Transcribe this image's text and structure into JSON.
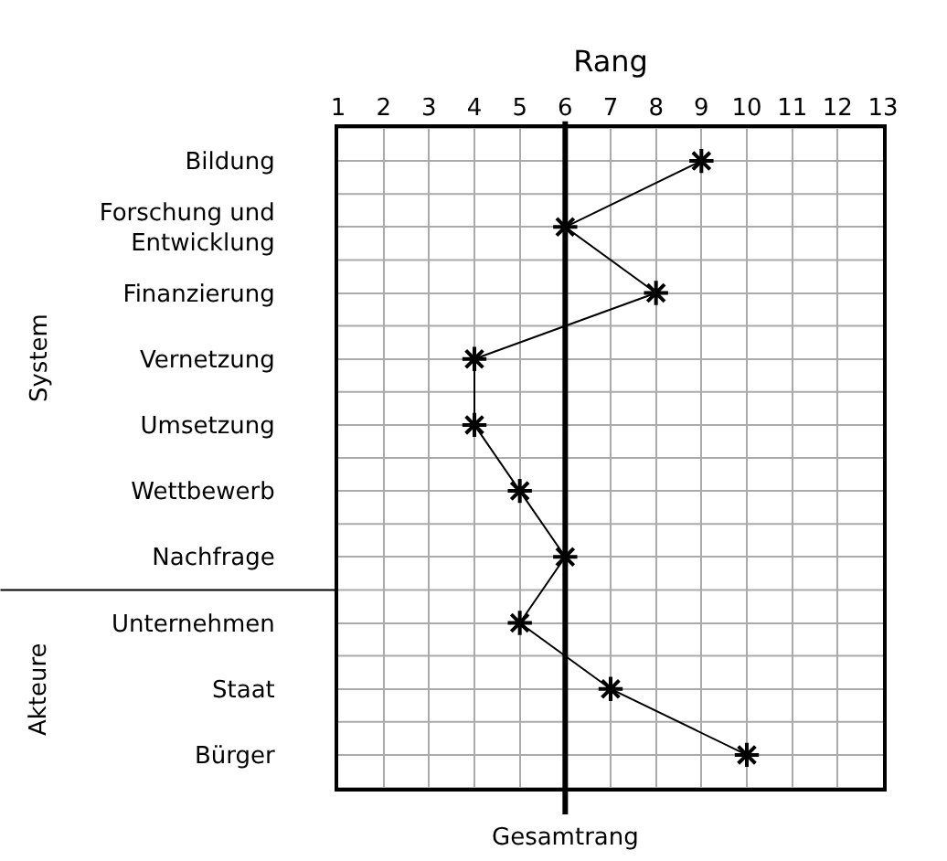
{
  "chart_data": {
    "type": "line",
    "orientation": "horizontal",
    "xlabel": "Rang",
    "categories": [
      "Bildung",
      "Forschung und Entwicklung",
      "Finanzierung",
      "Vernetzung",
      "Umsetzung",
      "Wettbewerb",
      "Nachfrage",
      "Unternehmen",
      "Staat",
      "Bürger"
    ],
    "series": [
      {
        "color": "#000000",
        "values": [
          9,
          6,
          8,
          4,
          4,
          5,
          6,
          5,
          7,
          10
        ]
      }
    ],
    "xlim": [
      1,
      13
    ],
    "xticks": [
      1,
      2,
      3,
      4,
      5,
      6,
      7,
      8,
      9,
      10,
      11,
      12,
      13
    ],
    "ref_lines": [
      {
        "axis": "x",
        "value": 6,
        "label": "Gesamtrang",
        "color": "#000000"
      }
    ],
    "annotations": [
      "System",
      "Akteure"
    ],
    "marker": "cross",
    "line_style": "solid",
    "grid": true,
    "legend": false
  }
}
